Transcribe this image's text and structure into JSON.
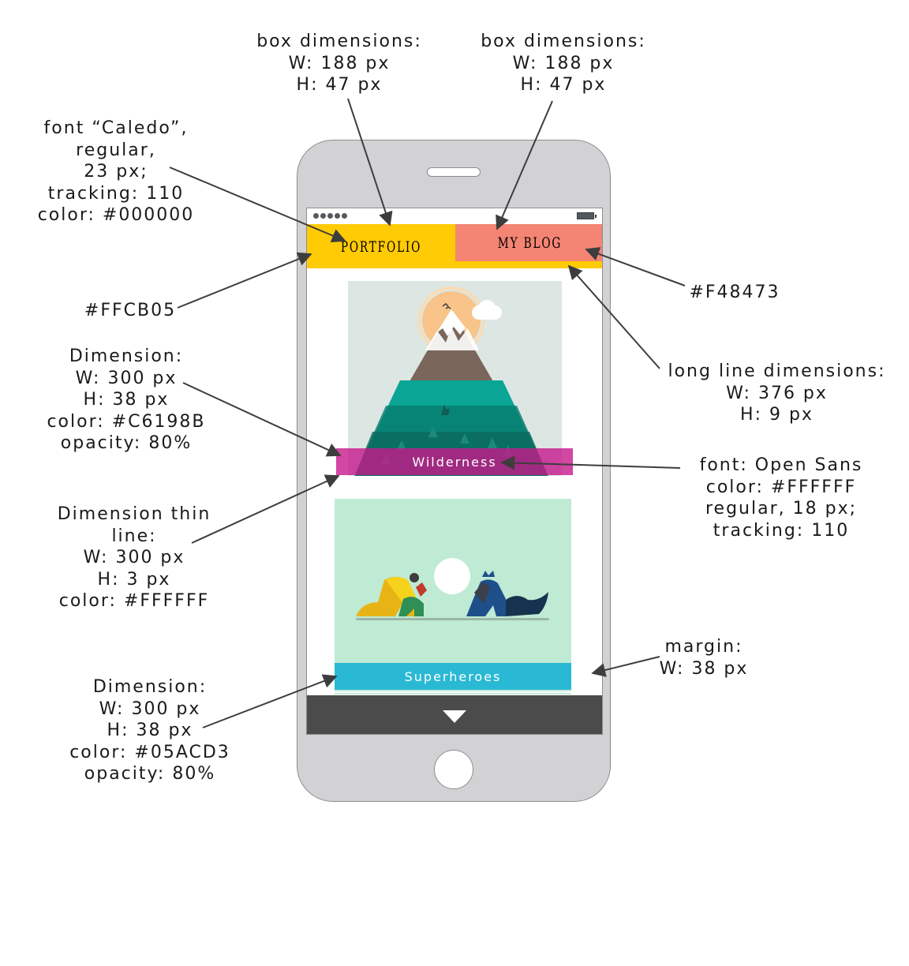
{
  "annotations": {
    "box_left": [
      "box dimensions:",
      "W: 188 px",
      "H: 47 px"
    ],
    "box_right": [
      "box dimensions:",
      "W: 188 px",
      "H: 47 px"
    ],
    "font_caledo": [
      "font “Caledo”,",
      "regular,",
      "23 px;",
      "tracking: 110",
      "color: #000000"
    ],
    "color_yellow": [
      "#FFCB05"
    ],
    "color_salmon": [
      "#F48473"
    ],
    "long_line": [
      "long line dimensions:",
      "W: 376 px",
      "H: 9 px"
    ],
    "dimension_magenta": [
      "Dimension:",
      "W: 300 px",
      "H: 38 px",
      "color: #C6198B",
      "opacity: 80%"
    ],
    "font_open_sans": [
      "font: Open Sans",
      "color: #FFFFFF",
      "regular, 18 px;",
      "tracking: 110"
    ],
    "thin_line": [
      "Dimension thin",
      "line:",
      "W: 300 px",
      "H: 3 px",
      "color: #FFFFFF"
    ],
    "margin": [
      "margin:",
      "W: 38 px"
    ],
    "dimension_blue": [
      "Dimension:",
      "W: 300 px",
      "H: 38 px",
      "color: #05ACD3",
      "opacity: 80%"
    ]
  },
  "phone_screen": {
    "nav": {
      "portfolio_label": "PORTFOLIO",
      "blog_label": "MY BLOG"
    },
    "cards": [
      {
        "label": "Wilderness",
        "label_color": "#C6198B"
      },
      {
        "label": "Superheroes",
        "label_color": "#05ACD3"
      }
    ]
  },
  "colors": {
    "nav_yellow": "#FFCB05",
    "nav_salmon": "#F48473",
    "label_magenta": "#C6198B",
    "label_blue": "#05ACD3",
    "thin_line": "#FFFFFF",
    "font": "#000000",
    "phone_body": "#d2d2d4",
    "bottom_bar": "#4b4b4b"
  },
  "icons": [
    "battery-icon",
    "signal-dots-icon",
    "down-arrow-icon",
    "home-button",
    "speaker-slot"
  ]
}
